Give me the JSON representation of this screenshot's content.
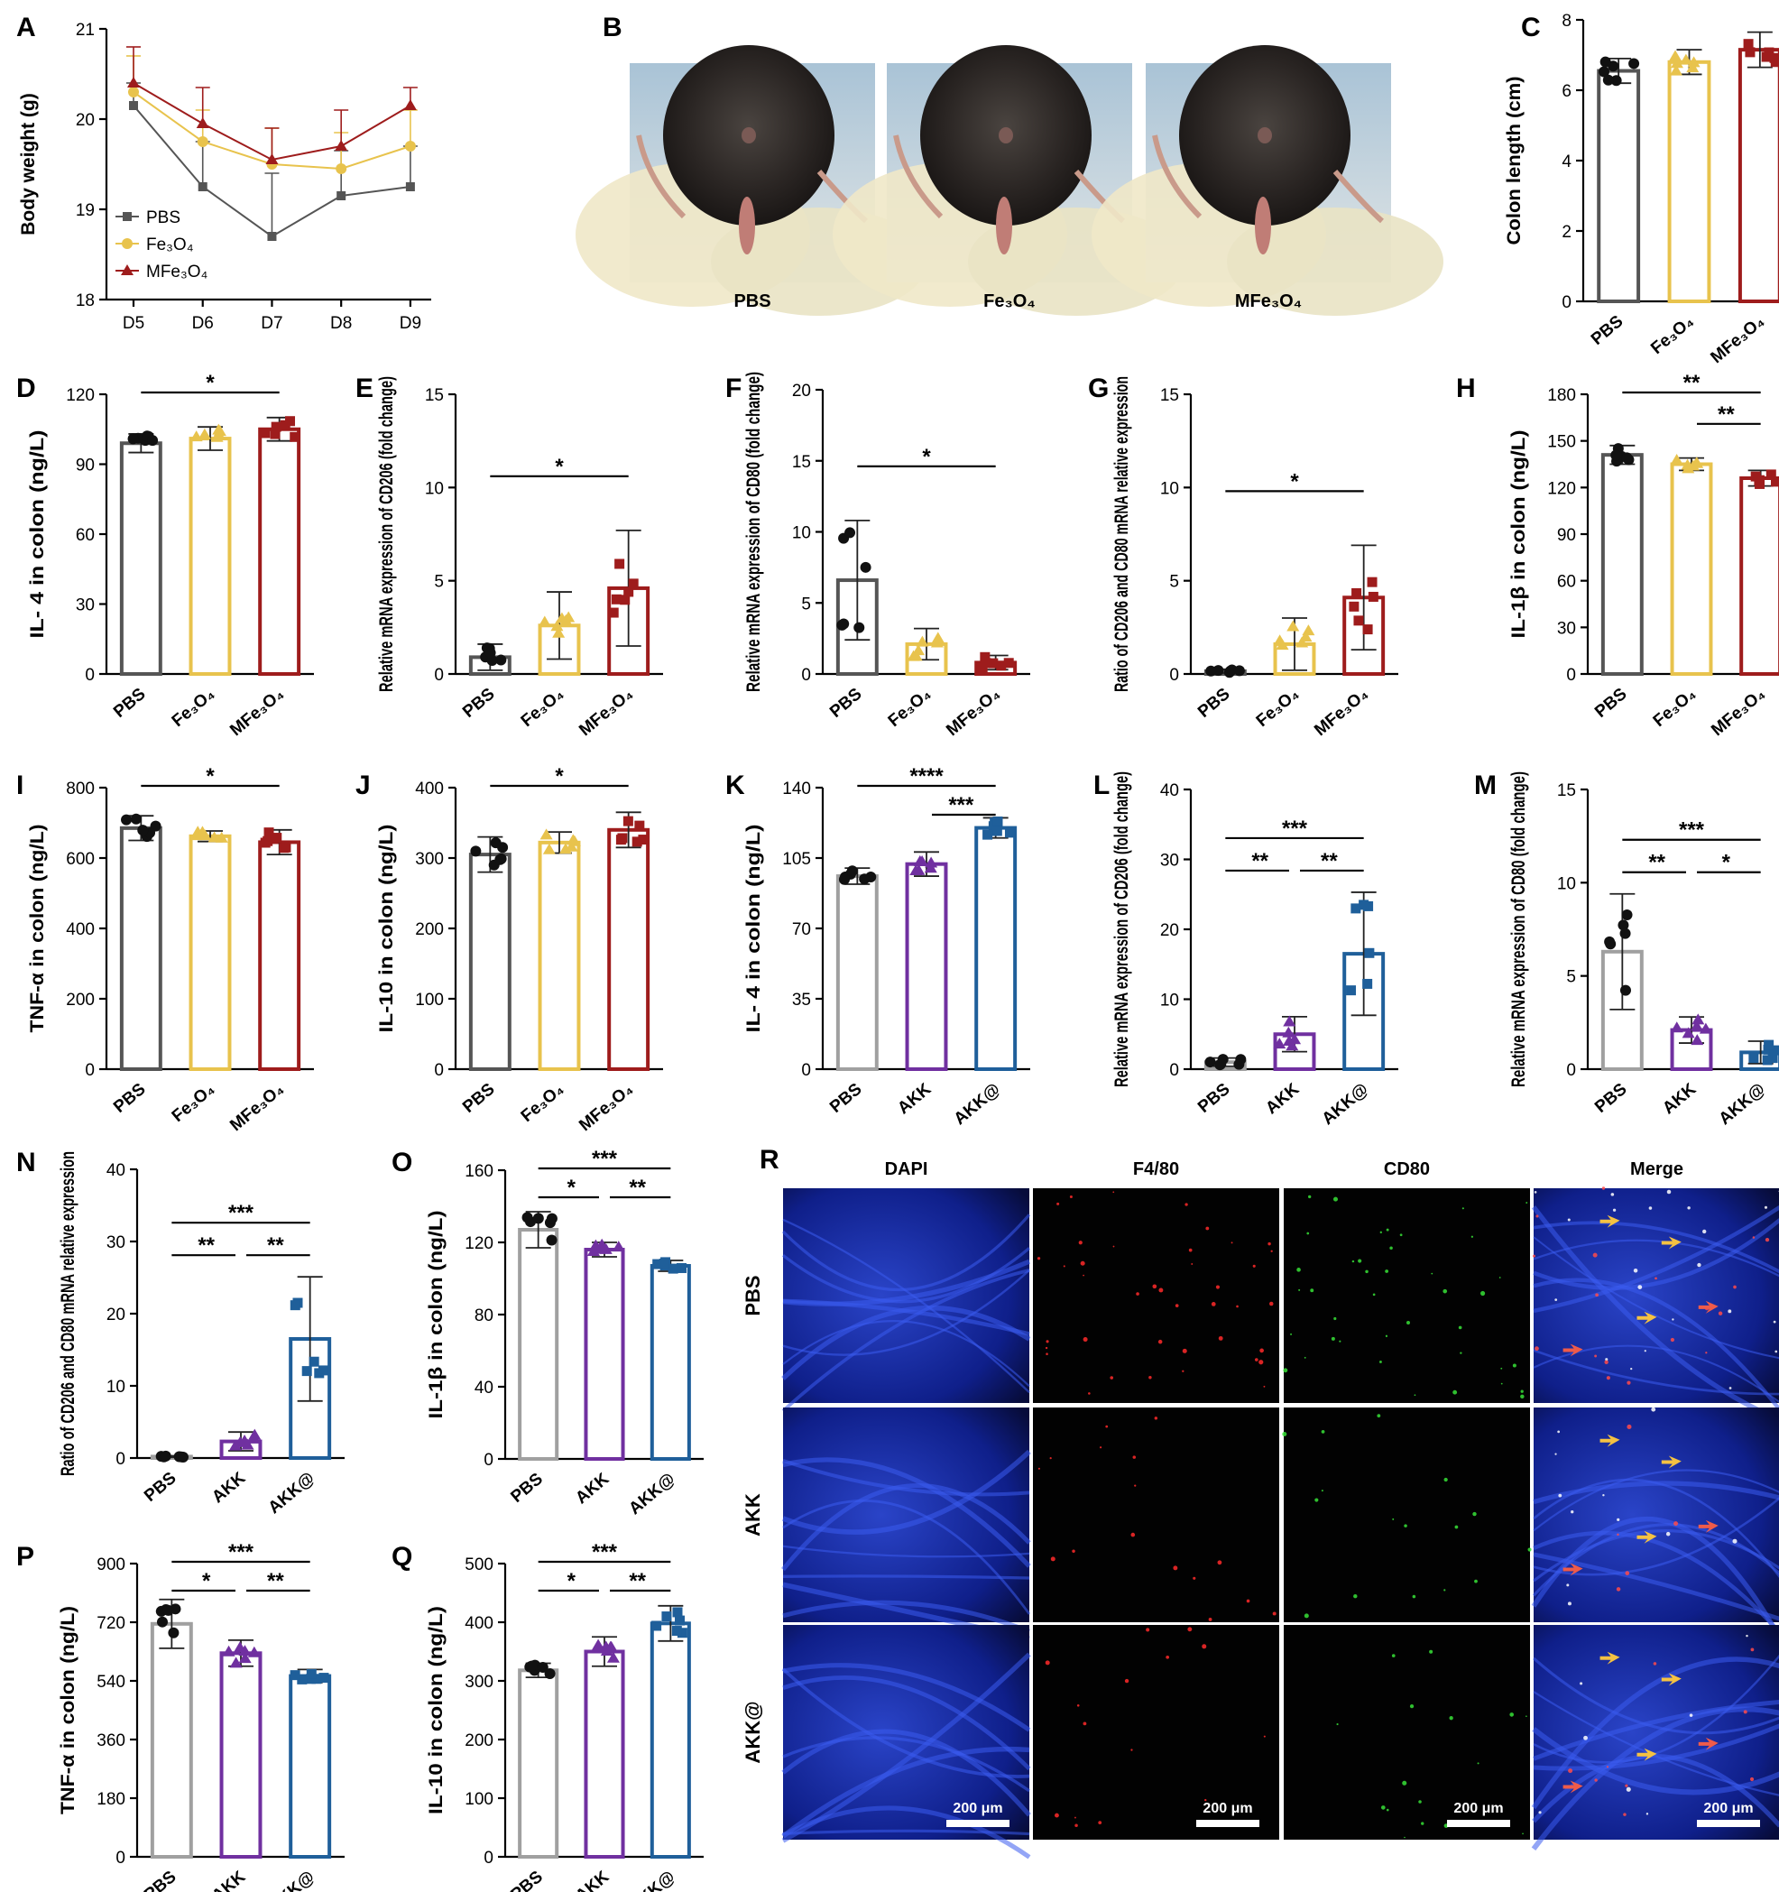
{
  "figure": "Multi-panel figure: body weight, colon length, cytokines, macrophage markers, immunofluorescence",
  "colors": {
    "PBS": "#555555",
    "Fe3O4": "#e8c34d",
    "MFe3O4": "#9e1c1c",
    "PBS2": "#a0a0a0",
    "AKK": "#7030a0",
    "AKKat": "#1f5f9a"
  },
  "chart_data": [
    {
      "panel": "A",
      "type": "line",
      "ylabel": "Body weight (g)",
      "xlabel": "",
      "categories": [
        "D5",
        "D6",
        "D7",
        "D8",
        "D9"
      ],
      "ylim": [
        18,
        21
      ],
      "yticks": [
        "18",
        "19",
        "20",
        "21"
      ],
      "series": [
        {
          "name": "PBS",
          "values": [
            20.15,
            19.25,
            18.7,
            19.15,
            19.25
          ],
          "err": [
            0.25,
            0.5,
            0.7,
            0.5,
            0.45
          ]
        },
        {
          "name": "Fe₃O₄",
          "values": [
            20.3,
            19.75,
            19.5,
            19.45,
            19.7
          ],
          "err": [
            0.4,
            0.35,
            0.4,
            0.4,
            0.4
          ]
        },
        {
          "name": "MFe₃O₄",
          "values": [
            20.4,
            19.95,
            19.55,
            19.7,
            20.15
          ],
          "err": [
            0.4,
            0.4,
            0.35,
            0.4,
            0.2
          ]
        }
      ],
      "legend": [
        "PBS",
        "Fe₃O₄",
        "MFe₃O₄"
      ]
    },
    {
      "panel": "C",
      "type": "bar",
      "ylabel": "Colon length (cm)",
      "categories": [
        "PBS",
        "Fe₃O₄",
        "MFe₃O₄"
      ],
      "values": [
        6.55,
        6.8,
        7.15
      ],
      "err": [
        0.35,
        0.35,
        0.5
      ],
      "ylim": [
        0,
        8
      ],
      "yticks": [
        "0",
        "2",
        "4",
        "6",
        "8"
      ],
      "sig": []
    },
    {
      "panel": "D",
      "type": "bar",
      "ylabel": "IL- 4 in colon (ng/L)",
      "categories": [
        "PBS",
        "Fe₃O₄",
        "MFe₃O₄"
      ],
      "values": [
        99,
        101,
        105
      ],
      "err": [
        4,
        5,
        5
      ],
      "ylim": [
        0,
        120
      ],
      "yticks": [
        "0",
        "30",
        "60",
        "90",
        "120"
      ],
      "sig": [
        {
          "from": 0,
          "to": 2,
          "label": "*"
        }
      ]
    },
    {
      "panel": "E",
      "type": "bar",
      "ylabel": "Relative mRNA expression of CD206 (fold change)",
      "categories": [
        "PBS",
        "Fe₃O₄",
        "MFe₃O₄"
      ],
      "values": [
        0.9,
        2.6,
        4.6
      ],
      "err": [
        0.7,
        1.8,
        3.1
      ],
      "ylim": [
        0,
        15
      ],
      "yticks": [
        "0",
        "5",
        "10",
        "15"
      ],
      "sig": [
        {
          "from": 0,
          "to": 2,
          "label": "*"
        }
      ]
    },
    {
      "panel": "F",
      "type": "bar",
      "ylabel": "Relative mRNA expression of CD80 (fold change)",
      "categories": [
        "PBS",
        "Fe₃O₄",
        "MFe₃O₄"
      ],
      "values": [
        6.6,
        2.1,
        0.8
      ],
      "err": [
        4.2,
        1.1,
        0.5
      ],
      "ylim": [
        0,
        20
      ],
      "yticks": [
        "0",
        "5",
        "10",
        "15",
        "20"
      ],
      "sig": [
        {
          "from": 0,
          "to": 2,
          "label": "*"
        }
      ]
    },
    {
      "panel": "G",
      "type": "bar",
      "ylabel": "Ratio of CD206 and CD80 mRNA relative expression",
      "categories": [
        "PBS",
        "Fe₃O₄",
        "MFe₃O₄"
      ],
      "values": [
        0.15,
        1.6,
        4.1
      ],
      "err": [
        0.1,
        1.4,
        2.8
      ],
      "ylim": [
        0,
        15
      ],
      "yticks": [
        "0",
        "5",
        "10",
        "15"
      ],
      "sig": [
        {
          "from": 0,
          "to": 2,
          "label": "*"
        }
      ]
    },
    {
      "panel": "H",
      "type": "bar",
      "ylabel": "IL-1β in colon (ng/L)",
      "categories": [
        "PBS",
        "Fe₃O₄",
        "MFe₃O₄"
      ],
      "values": [
        141,
        135,
        126
      ],
      "err": [
        6,
        4,
        5
      ],
      "ylim": [
        0,
        180
      ],
      "yticks": [
        "0",
        "30",
        "60",
        "90",
        "120",
        "150",
        "180"
      ],
      "sig": [
        {
          "from": 0,
          "to": 2,
          "label": "**"
        },
        {
          "from": 1,
          "to": 2,
          "label": "**"
        }
      ]
    },
    {
      "panel": "I",
      "type": "bar",
      "ylabel": "TNF-α in colon (ng/L)",
      "categories": [
        "PBS",
        "Fe₃O₄",
        "MFe₃O₄"
      ],
      "values": [
        685,
        662,
        645
      ],
      "err": [
        35,
        15,
        35
      ],
      "ylim": [
        0,
        800
      ],
      "yticks": [
        "0",
        "200",
        "400",
        "600",
        "800"
      ],
      "sig": [
        {
          "from": 0,
          "to": 2,
          "label": "*"
        }
      ]
    },
    {
      "panel": "J",
      "type": "bar",
      "ylabel": "IL-10 in colon (ng/L)",
      "categories": [
        "PBS",
        "Fe₃O₄",
        "MFe₃O₄"
      ],
      "values": [
        305,
        322,
        340
      ],
      "err": [
        25,
        15,
        25
      ],
      "ylim": [
        0,
        400
      ],
      "yticks": [
        "0",
        "100",
        "200",
        "300",
        "400"
      ],
      "sig": [
        {
          "from": 0,
          "to": 2,
          "label": "*"
        }
      ]
    },
    {
      "panel": "K",
      "type": "bar",
      "ylabel": "IL- 4 in colon (ng/L)",
      "categories": [
        "PBS",
        "AKK",
        "AKK@"
      ],
      "values": [
        96,
        102,
        120
      ],
      "err": [
        4,
        6,
        5
      ],
      "ylim": [
        0,
        140
      ],
      "yticks": [
        "0",
        "35",
        "70",
        "105",
        "140"
      ],
      "sig": [
        {
          "from": 0,
          "to": 2,
          "label": "****"
        },
        {
          "from": 1,
          "to": 2,
          "label": "***"
        }
      ]
    },
    {
      "panel": "L",
      "type": "bar",
      "ylabel": "Relative mRNA expression of CD206 (fold change)",
      "categories": [
        "PBS",
        "AKK",
        "AKK@"
      ],
      "values": [
        1,
        5,
        16.5
      ],
      "err": [
        0.6,
        2.5,
        8.8
      ],
      "ylim": [
        0,
        40
      ],
      "yticks": [
        "0",
        "10",
        "20",
        "30",
        "40"
      ],
      "sig": [
        {
          "from": 0,
          "to": 2,
          "label": "***"
        },
        {
          "from": 0,
          "to": 1,
          "label": "**"
        },
        {
          "from": 1,
          "to": 2,
          "label": "**"
        }
      ]
    },
    {
      "panel": "M",
      "type": "bar",
      "ylabel": "Relative mRNA expression of CD80 (fold change)",
      "categories": [
        "PBS",
        "AKK",
        "AKK@"
      ],
      "values": [
        6.3,
        2.1,
        0.9
      ],
      "err": [
        3.1,
        0.7,
        0.6
      ],
      "ylim": [
        0,
        15
      ],
      "yticks": [
        "0",
        "5",
        "10",
        "15"
      ],
      "sig": [
        {
          "from": 0,
          "to": 2,
          "label": "***"
        },
        {
          "from": 0,
          "to": 1,
          "label": "**"
        },
        {
          "from": 1,
          "to": 2,
          "label": "*"
        }
      ]
    },
    {
      "panel": "N",
      "type": "bar",
      "ylabel": "Ratio of CD206 and CD80 mRNA relative expression",
      "categories": [
        "PBS",
        "AKK",
        "AKK@"
      ],
      "values": [
        0.2,
        2.3,
        16.5
      ],
      "err": [
        0.1,
        1.3,
        8.6
      ],
      "ylim": [
        0,
        40
      ],
      "yticks": [
        "0",
        "10",
        "20",
        "30",
        "40"
      ],
      "sig": [
        {
          "from": 0,
          "to": 2,
          "label": "***"
        },
        {
          "from": 0,
          "to": 1,
          "label": "**"
        },
        {
          "from": 1,
          "to": 2,
          "label": "**"
        }
      ]
    },
    {
      "panel": "O",
      "type": "bar",
      "ylabel": "IL-1β in colon (ng/L)",
      "categories": [
        "PBS",
        "AKK",
        "AKK@"
      ],
      "values": [
        127,
        116,
        107
      ],
      "err": [
        10,
        4,
        3
      ],
      "ylim": [
        0,
        160
      ],
      "yticks": [
        "0",
        "40",
        "80",
        "120",
        "160"
      ],
      "sig": [
        {
          "from": 0,
          "to": 2,
          "label": "***"
        },
        {
          "from": 0,
          "to": 1,
          "label": "*"
        },
        {
          "from": 1,
          "to": 2,
          "label": "**"
        }
      ]
    },
    {
      "panel": "P",
      "type": "bar",
      "ylabel": "TNF-α in colon (ng/L)",
      "categories": [
        "PBS",
        "AKK",
        "AKK@"
      ],
      "values": [
        715,
        625,
        555
      ],
      "err": [
        75,
        40,
        20
      ],
      "ylim": [
        0,
        900
      ],
      "yticks": [
        "0",
        "180",
        "360",
        "540",
        "720",
        "900"
      ],
      "sig": [
        {
          "from": 0,
          "to": 2,
          "label": "***"
        },
        {
          "from": 0,
          "to": 1,
          "label": "*"
        },
        {
          "from": 1,
          "to": 2,
          "label": "**"
        }
      ]
    },
    {
      "panel": "Q",
      "type": "bar",
      "ylabel": "IL-10 in colon (ng/L)",
      "categories": [
        "PBS",
        "AKK",
        "AKK@"
      ],
      "values": [
        318,
        350,
        398
      ],
      "err": [
        12,
        25,
        30
      ],
      "ylim": [
        0,
        500
      ],
      "yticks": [
        "0",
        "100",
        "200",
        "300",
        "400",
        "500"
      ],
      "sig": [
        {
          "from": 0,
          "to": 2,
          "label": "***"
        },
        {
          "from": 0,
          "to": 1,
          "label": "*"
        },
        {
          "from": 1,
          "to": 2,
          "label": "**"
        }
      ]
    }
  ],
  "photos": {
    "panel": "B",
    "labels": [
      "PBS",
      "Fe₃O₄",
      "MFe₃O₄"
    ]
  },
  "if_grid": {
    "panel": "R",
    "columns": [
      "DAPI",
      "F4/80",
      "CD80",
      "Merge"
    ],
    "rows": [
      "PBS",
      "AKK",
      "AKK@"
    ],
    "scalebar": "200 μm"
  }
}
